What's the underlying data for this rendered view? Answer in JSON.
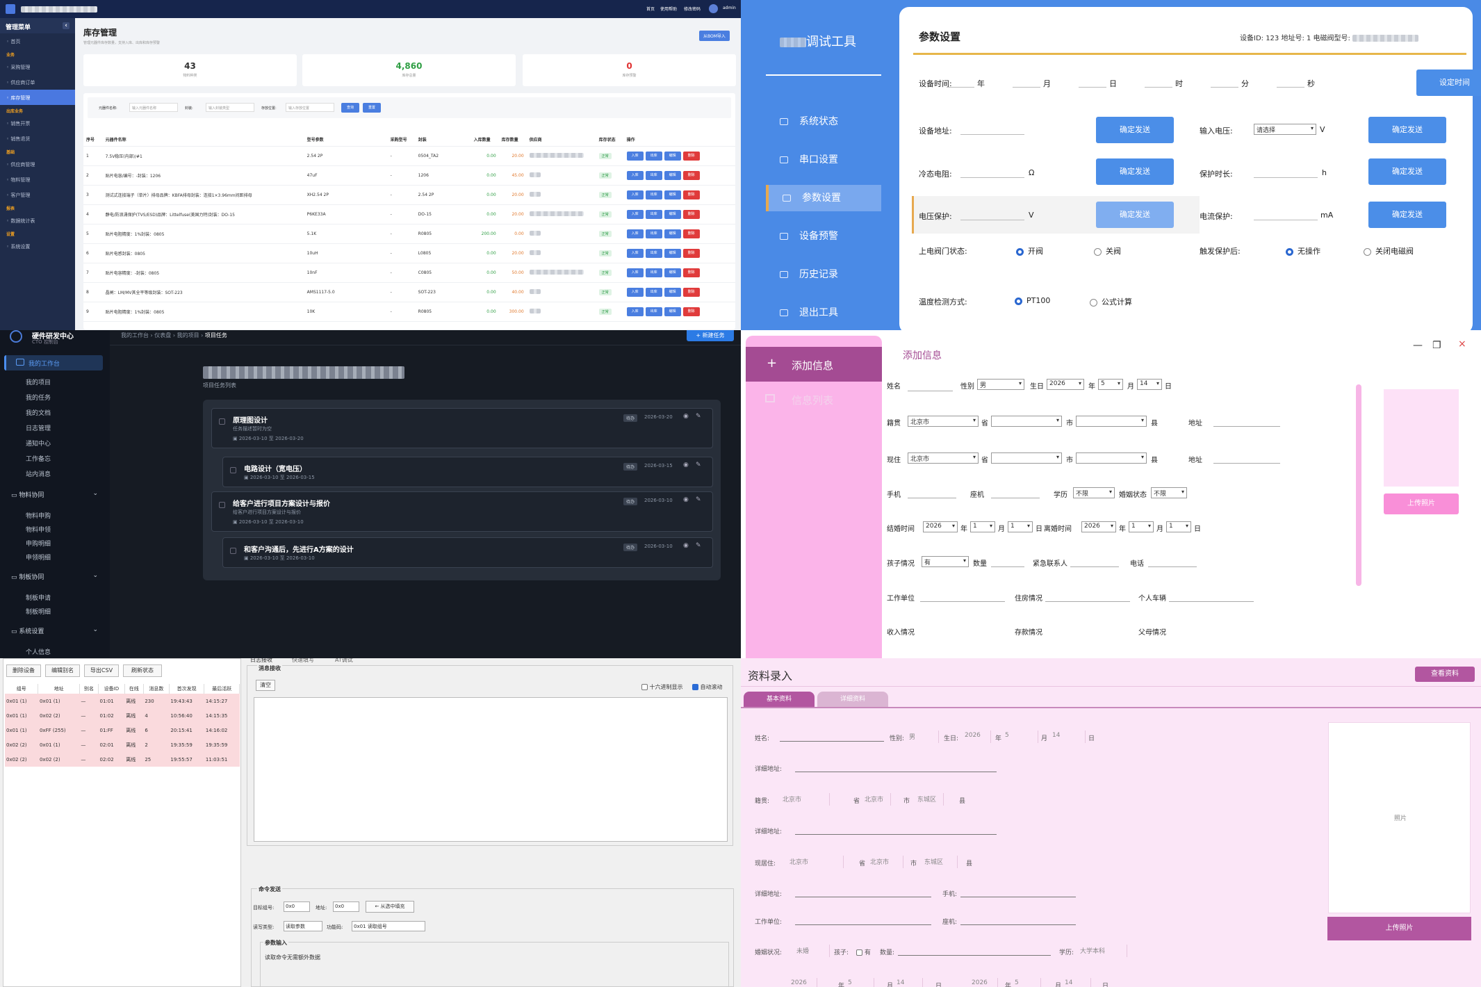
{
  "inventory": {
    "brand": "",
    "topbar": {
      "home": "首页",
      "help": "使用帮助",
      "password": "修改密码",
      "user": "admin"
    },
    "sidebar_title": "管理菜单",
    "menu": [
      {
        "label": "首页",
        "type": "item"
      },
      {
        "label": "业务",
        "type": "group"
      },
      {
        "label": "采购管理",
        "type": "item"
      },
      {
        "label": "供应商订单",
        "type": "item"
      },
      {
        "label": "库存管理",
        "type": "item",
        "active": true
      },
      {
        "label": "出库业务",
        "type": "group"
      },
      {
        "label": "销售开票",
        "type": "item"
      },
      {
        "label": "销售退货",
        "type": "item"
      },
      {
        "label": "基础",
        "type": "group"
      },
      {
        "label": "供应商管理",
        "type": "item"
      },
      {
        "label": "物料管理",
        "type": "item"
      },
      {
        "label": "客户管理",
        "type": "item"
      },
      {
        "label": "报表",
        "type": "group"
      },
      {
        "label": "数据统计表",
        "type": "item"
      },
      {
        "label": "设置",
        "type": "group"
      },
      {
        "label": "系统设置",
        "type": "item"
      }
    ],
    "title": "库存管理",
    "subtitle": "管理元器件库存数量，支持入库、出库和库存预警",
    "import_button": "从BOM导入",
    "stats": [
      {
        "value": "43",
        "label": "物料种类",
        "color": "#333333"
      },
      {
        "value": "4,860",
        "label": "库存总量",
        "color": "#2f9e44"
      },
      {
        "value": "0",
        "label": "库存预警",
        "color": "#e03131"
      }
    ],
    "filter": {
      "name_label": "元器件名称:",
      "name_placeholder": "输入元器件名称",
      "pkg_label": "封装:",
      "pkg_placeholder": "输入封装类型",
      "loc_label": "存放位置:",
      "loc_placeholder": "输入存放位置",
      "search": "查询",
      "reset": "重置"
    },
    "columns": [
      "序号",
      "元器件名称",
      "型号参数",
      "采购型号",
      "封装",
      "入库数量",
      "库存数量",
      "供应商",
      "库存状态",
      "操作"
    ],
    "rows": [
      {
        "no": "1",
        "name": "7.5V稳压(内部)/#1",
        "spec": "2.54 2P",
        "pkg": "0504_TA2",
        "in": "0.00",
        "stock": "20.00"
      },
      {
        "no": "2",
        "name": "贴片电容/编号：-封装：1206",
        "spec": "47uF",
        "pkg": "1206",
        "in": "0.00",
        "stock": "45.00"
      },
      {
        "no": "3",
        "name": "测试式连接端子（单片）排母品牌：KBFA排母封装：连接1×3.96mm间距排母",
        "spec": "XH2.54 2P",
        "pkg": "2.54 2P",
        "in": "0.00",
        "stock": "20.00"
      },
      {
        "no": "4",
        "name": "静电/防浪涌保护(TVS/ESD)品牌：Littelfuse(美国力特)封装：DO-15",
        "spec": "P6KE33A",
        "pkg": "DO-15",
        "in": "0.00",
        "stock": "20.00"
      },
      {
        "no": "5",
        "name": "贴片电阻精度：1%封装：0805",
        "spec": "5.1K",
        "pkg": "R0805",
        "in": "200.00",
        "stock": "0.00"
      },
      {
        "no": "6",
        "name": "贴片电感封装：0805",
        "spec": "10uH",
        "pkg": "L0805",
        "in": "0.00",
        "stock": "20.00"
      },
      {
        "no": "7",
        "name": "贴片电容精度：-封装：0805",
        "spec": "10nF",
        "pkg": "C0805",
        "in": "0.00",
        "stock": "50.00"
      },
      {
        "no": "8",
        "name": "晶闸：LM/MV其全平等级封装：SOT-223",
        "spec": "AMS1117-5.0",
        "pkg": "SOT-223",
        "in": "0.00",
        "stock": "40.00"
      },
      {
        "no": "9",
        "name": "贴片电阻精度：1%封装：0805",
        "spec": "10K",
        "pkg": "R0805",
        "in": "0.00",
        "stock": "300.00"
      }
    ],
    "status_tag": "正常",
    "actions": [
      {
        "label": "入库",
        "color": "#4a7ee0"
      },
      {
        "label": "出库",
        "color": "#4a7ee0"
      },
      {
        "label": "编辑",
        "color": "#4a7ee0"
      },
      {
        "label": "删除",
        "color": "#e03b3b"
      }
    ]
  },
  "debug_tool": {
    "title": "调试工具",
    "nav": [
      {
        "label": "系统状态",
        "icon": "monitor-icon"
      },
      {
        "label": "串口设置",
        "icon": "serial-port-icon"
      },
      {
        "label": "参数设置",
        "icon": "sliders-icon",
        "active": true
      },
      {
        "label": "设备预警",
        "icon": "alarm-icon"
      },
      {
        "label": "历史记录",
        "icon": "history-icon"
      },
      {
        "label": "退出工具",
        "icon": "exit-icon"
      }
    ],
    "panel_title": "参数设置",
    "device_info": "设备ID: 123  地址号: 1  电磁阀型号:",
    "time_label": "设备时间:",
    "time_units": [
      "年",
      "月",
      "日",
      "时",
      "分",
      "秒"
    ],
    "set_time_button": "设定时间",
    "address_label": "设备地址:",
    "input_voltage_label": "输入电压:",
    "input_voltage_select": "请选择",
    "input_voltage_unit": "V",
    "cold_resistance_label": "冷态电阻:",
    "cold_resistance_unit": "Ω",
    "protect_duration_label": "保护时长:",
    "protect_duration_unit": "h",
    "voltage_protect_label": "电压保护:",
    "voltage_protect_unit": "V",
    "current_protect_label": "电流保护:",
    "current_protect_unit": "mA",
    "send_button": "确定发送",
    "valve_state_label": "上电阀门状态:",
    "valve_open": "开阀",
    "valve_close": "关阀",
    "after_trigger_label": "触发保护后:",
    "no_action": "无操作",
    "close_valve": "关闭电磁阀",
    "temp_label": "温度检测方式:",
    "temp_pt100": "PT100",
    "temp_formula": "公式计算"
  },
  "project": {
    "brand": "硬件研发中心",
    "brand_sub": "CTO 控制台",
    "breadcrumb": [
      "我的工作台",
      "仪表盘",
      "我的项目",
      "项目任务"
    ],
    "new_task_button": "+ 新建任务",
    "nav_active": "我的工作台",
    "nav_items": [
      "我的项目",
      "我的任务",
      "我的文档",
      "日志管理",
      "通知中心",
      "工作备忘",
      "站内消息"
    ],
    "group_materials": "物料协同",
    "material_items": [
      "物料申购",
      "物料申领",
      "申购明细",
      "申领明细"
    ],
    "group_docs": "制板协同",
    "doc_items": [
      "制板申请",
      "制板明细"
    ],
    "group_settings": "系统设置",
    "settings_items": [
      "个人信息"
    ],
    "project_title": "",
    "project_sub": "项目任务列表",
    "tasks": [
      {
        "title": "原理图设计",
        "desc": "任务描述暂时为空",
        "dates": "2026-03-10 至 2026-03-20",
        "tag": "待办",
        "due": "2026-03-20"
      },
      {
        "title": "电路设计（宽电压）",
        "desc": "",
        "dates": "2026-03-10 至 2026-03-15",
        "tag": "待办",
        "due": "2026-03-15"
      },
      {
        "title": "给客户进行项目方案设计与报价",
        "desc": "给客户进行项目方案设计与报价",
        "dates": "2026-03-10 至 2026-03-10",
        "tag": "待办",
        "due": "2026-03-10"
      },
      {
        "title": "和客户沟通后，先进行A方案的设计",
        "desc": "",
        "dates": "2026-03-10 至 2026-03-10",
        "tag": "待办",
        "due": "2026-03-10"
      }
    ]
  },
  "add_info": {
    "nav_add": "添加信息",
    "nav_list": "信息列表",
    "title": "添加信息",
    "labels": {
      "name": "姓名",
      "gender": "性别",
      "birth": "生日",
      "year": "年",
      "month": "月",
      "day": "日",
      "origin": "籍贯",
      "prov": "省",
      "city": "市",
      "county": "县",
      "address": "地址",
      "current": "现住",
      "phone": "手机",
      "landline": "座机",
      "edu": "学历",
      "marital": "婚姻状态",
      "marry_time": "结婚时间",
      "divorce_time": "离婚时间",
      "children": "孩子情况",
      "count": "数量",
      "emergency": "紧急联系人",
      "tel": "电话",
      "work": "工作单位",
      "housing": "住房情况",
      "car": "个人车辆",
      "income": "收入情况",
      "savings": "存款情况",
      "parents": "父母情况"
    },
    "values": {
      "gender": "男",
      "year": "2026",
      "month": "5",
      "day": "14",
      "origin_city": "北京市",
      "current_city": "北京市",
      "edu": "不限",
      "marital": "不限",
      "marry_year": "2026",
      "marry_month": "1",
      "marry_day": "1",
      "divorce_year": "2026",
      "divorce_month": "1",
      "divorce_day": "1",
      "children": "有"
    },
    "upload_button": "上传照片"
  },
  "serial": {
    "toolbar": [
      "删除设备",
      "编辑别名",
      "导出CSV",
      "刷新状态"
    ],
    "columns": [
      "组号",
      "地址",
      "别名",
      "设备ID",
      "在线",
      "消息数",
      "首次发现",
      "最后活跃"
    ],
    "rows": [
      [
        "0x01 (1)",
        "0x01 (1)",
        "—",
        "01:01",
        "离线",
        "230",
        "19:43:43",
        "14:15:27"
      ],
      [
        "0x01 (1)",
        "0x02 (2)",
        "—",
        "01:02",
        "离线",
        "4",
        "10:56:40",
        "14:15:35"
      ],
      [
        "0x01 (1)",
        "0xFF (255)",
        "—",
        "01:FF",
        "离线",
        "6",
        "20:15:41",
        "14:16:02"
      ],
      [
        "0x02 (2)",
        "0x01 (1)",
        "—",
        "02:01",
        "离线",
        "2",
        "19:35:59",
        "19:35:59"
      ],
      [
        "0x02 (2)",
        "0x02 (2)",
        "—",
        "02:02",
        "离线",
        "25",
        "19:55:57",
        "11:03:51"
      ]
    ],
    "tabs": [
      "日志接收",
      "快速填写",
      "AT调试"
    ],
    "recv_title": "消息接收",
    "clear_button": "清空",
    "hex_label": "十六进制显示",
    "autoscroll_label": "自动滚动",
    "cmd_title": "命令发送",
    "target_group_label": "目标组号:",
    "target_group_value": "0x0",
    "address_label": "地址:",
    "address_value": "0x0",
    "fill_button": "← 从选中填充",
    "rw_label": "读写类型:",
    "rw_value": "读取参数",
    "func_label": "功能码:",
    "func_value": "0x01 读取组号",
    "param_title": "参数输入",
    "param_text": "读取命令无需额外数据"
  },
  "profile": {
    "title": "资料录入",
    "view_button": "查看资料",
    "tabs": [
      "基本资料",
      "详细资料"
    ],
    "name_label": "姓名:",
    "gender_label": "性别:",
    "gender": "男",
    "birth_label": "生日:",
    "year": "2026",
    "year_unit": "年",
    "month": "5",
    "month_unit": "月",
    "day": "14",
    "day_unit": "日",
    "detail_addr": "详细地址:",
    "origin_label": "籍贯:",
    "origin_city": "北京市",
    "prov_unit": "省",
    "origin_prov": "北京市",
    "city_unit": "市",
    "origin_district": "东城区",
    "county_unit": "县",
    "current_label": "现居住:",
    "current_city": "北京市",
    "current_prov": "北京市",
    "current_district": "东城区",
    "phone_label": "手机:",
    "work_label": "工作单位:",
    "landline_label": "座机:",
    "marital_label": "婚姻状况:",
    "marital": "未婚",
    "children_label": "孩子:",
    "has_children": "有",
    "count_label": "数量:",
    "edu_label": "学历:",
    "edu": "大学本科",
    "photo_label": "照片",
    "upload_button": "上传照片",
    "bottom_year": "2026",
    "bottom_month": "5",
    "bottom_day": "14",
    "bottom_year2": "2026",
    "bottom_month2": "5",
    "bottom_day2": "14"
  }
}
